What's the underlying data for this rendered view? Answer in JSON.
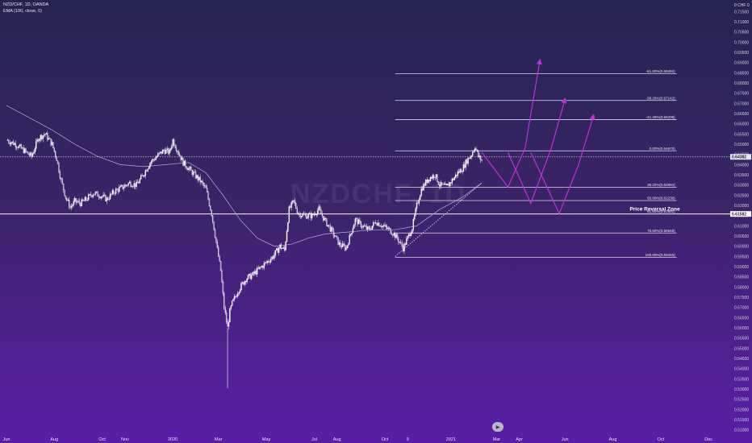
{
  "header": {
    "symbol_line": "NZD/CHF, 1D, OANDA",
    "indicator_line": "EMA (100, close, 0)",
    "currency_label": "0 CHF 0"
  },
  "watermark": "NZDCHF, 1D",
  "colors": {
    "candle": "#ffffff",
    "ema": "#b9a8d8",
    "fib": "#d8d8e8",
    "projection": "#c030d8",
    "current_price_line": "#c9c9d9",
    "reversal_line": "#ffffff"
  },
  "chart_data": {
    "type": "line",
    "title": "",
    "xlabel": "",
    "ylabel": "",
    "ylim": [
      0.5095,
      0.7175
    ],
    "y_ticks": [
      "0.71500",
      "0.71000",
      "0.70500",
      "0.70000",
      "0.69500",
      "0.69000",
      "0.68500",
      "0.68000",
      "0.67500",
      "0.67000",
      "0.66500",
      "0.66000",
      "0.65500",
      "0.65000",
      "0.64500",
      "0.64000",
      "0.63500",
      "0.63000",
      "0.62500",
      "0.62000",
      "0.61500",
      "0.61000",
      "0.60500",
      "0.60000",
      "0.59500",
      "0.59000",
      "0.58500",
      "0.58000",
      "0.57500",
      "0.57000",
      "0.56500",
      "0.56000",
      "0.55500",
      "0.55000",
      "0.54500",
      "0.54000",
      "0.53500",
      "0.53000",
      "0.52500",
      "0.52000",
      "0.51500",
      "0.51000"
    ],
    "x_ticks": [
      {
        "label": "Jun",
        "bar": 0
      },
      {
        "label": "Aug",
        "bar": 42
      },
      {
        "label": "Oct",
        "bar": 84
      },
      {
        "label": "Nov",
        "bar": 104
      },
      {
        "label": "2020",
        "bar": 146
      },
      {
        "label": "Mar",
        "bar": 186
      },
      {
        "label": "May",
        "bar": 228
      },
      {
        "label": "Jul",
        "bar": 270
      },
      {
        "label": "Aug",
        "bar": 290
      },
      {
        "label": "Oct",
        "bar": 332
      },
      {
        "label": "9",
        "bar": 352
      },
      {
        "label": "2021",
        "bar": 390
      },
      {
        "label": "Mar",
        "bar": 430
      },
      {
        "label": "Apr",
        "bar": 450
      },
      {
        "label": "Jun",
        "bar": 490
      },
      {
        "label": "Aug",
        "bar": 532
      },
      {
        "label": "Oct",
        "bar": 574
      },
      {
        "label": "Dec",
        "bar": 616
      }
    ],
    "bars_total": 635,
    "price_path": [
      [
        0,
        0.652
      ],
      [
        8,
        0.65
      ],
      [
        15,
        0.647
      ],
      [
        22,
        0.644
      ],
      [
        28,
        0.653
      ],
      [
        34,
        0.655
      ],
      [
        40,
        0.65
      ],
      [
        44,
        0.643
      ],
      [
        48,
        0.632
      ],
      [
        52,
        0.624
      ],
      [
        56,
        0.619
      ],
      [
        60,
        0.622
      ],
      [
        65,
        0.621
      ],
      [
        70,
        0.623
      ],
      [
        76,
        0.626
      ],
      [
        82,
        0.625
      ],
      [
        88,
        0.623
      ],
      [
        95,
        0.627
      ],
      [
        102,
        0.629
      ],
      [
        108,
        0.631
      ],
      [
        114,
        0.63
      ],
      [
        120,
        0.635
      ],
      [
        126,
        0.641
      ],
      [
        132,
        0.644
      ],
      [
        138,
        0.647
      ],
      [
        143,
        0.646
      ],
      [
        146,
        0.652
      ],
      [
        150,
        0.647
      ],
      [
        155,
        0.641
      ],
      [
        160,
        0.638
      ],
      [
        165,
        0.635
      ],
      [
        170,
        0.632
      ],
      [
        175,
        0.628
      ],
      [
        180,
        0.616
      ],
      [
        184,
        0.602
      ],
      [
        188,
        0.588
      ],
      [
        191,
        0.57
      ],
      [
        194,
        0.56
      ],
      [
        196,
        0.568
      ],
      [
        198,
        0.572
      ],
      [
        204,
        0.579
      ],
      [
        210,
        0.584
      ],
      [
        216,
        0.586
      ],
      [
        222,
        0.589
      ],
      [
        228,
        0.592
      ],
      [
        234,
        0.595
      ],
      [
        240,
        0.6
      ],
      [
        244,
        0.598
      ],
      [
        248,
        0.618
      ],
      [
        252,
        0.622
      ],
      [
        256,
        0.616
      ],
      [
        262,
        0.615
      ],
      [
        268,
        0.615
      ],
      [
        274,
        0.618
      ],
      [
        280,
        0.612
      ],
      [
        286,
        0.607
      ],
      [
        292,
        0.601
      ],
      [
        298,
        0.599
      ],
      [
        302,
        0.606
      ],
      [
        306,
        0.613
      ],
      [
        312,
        0.61
      ],
      [
        318,
        0.608
      ],
      [
        324,
        0.612
      ],
      [
        330,
        0.61
      ],
      [
        336,
        0.608
      ],
      [
        340,
        0.606
      ],
      [
        344,
        0.603
      ],
      [
        348,
        0.599
      ],
      [
        352,
        0.604
      ],
      [
        356,
        0.609
      ],
      [
        360,
        0.62
      ],
      [
        364,
        0.628
      ],
      [
        370,
        0.633
      ],
      [
        376,
        0.635
      ],
      [
        380,
        0.63
      ],
      [
        386,
        0.629
      ],
      [
        392,
        0.633
      ],
      [
        396,
        0.636
      ],
      [
        400,
        0.638
      ],
      [
        404,
        0.642
      ],
      [
        408,
        0.645
      ],
      [
        411,
        0.649
      ],
      [
        414,
        0.644
      ],
      [
        417,
        0.642
      ]
    ],
    "ema_path": [
      [
        0,
        0.669
      ],
      [
        20,
        0.663
      ],
      [
        40,
        0.657
      ],
      [
        60,
        0.65
      ],
      [
        80,
        0.644
      ],
      [
        100,
        0.64
      ],
      [
        120,
        0.639
      ],
      [
        140,
        0.64
      ],
      [
        160,
        0.641
      ],
      [
        175,
        0.636
      ],
      [
        190,
        0.625
      ],
      [
        205,
        0.613
      ],
      [
        220,
        0.604
      ],
      [
        235,
        0.6
      ],
      [
        250,
        0.601
      ],
      [
        265,
        0.604
      ],
      [
        280,
        0.606
      ],
      [
        300,
        0.607
      ],
      [
        320,
        0.608
      ],
      [
        340,
        0.608
      ],
      [
        360,
        0.61
      ],
      [
        380,
        0.618
      ],
      [
        400,
        0.624
      ],
      [
        417,
        0.631
      ]
    ],
    "fib_start_bar": 341,
    "fib_end_bar": 588,
    "fib_levels": [
      {
        "label": "-61.80%(0.68455)",
        "value": 0.68455
      },
      {
        "label": "-38.20%(0.67142)",
        "value": 0.67142
      },
      {
        "label": "-21.40%(0.66208)",
        "value": 0.66208
      },
      {
        "label": "0.00%(0.64675)",
        "value": 0.64675
      },
      {
        "label": "38.20%(0.62894)",
        "value": 0.62894
      },
      {
        "label": "50.00%(0.62238)",
        "value": 0.62238
      },
      {
        "label": "61.80%(0.61582)",
        "value": 0.61582
      },
      {
        "label": "78.60%(0.60648)",
        "value": 0.60648
      },
      {
        "label": "100.00%(0.59455)",
        "value": 0.59455
      }
    ],
    "reversal_zone": {
      "label": "Price Reversal Zone",
      "value": 0.61582,
      "price_tag": "0.61582"
    },
    "current_price": {
      "value": 0.6438,
      "tag": "0.64382"
    },
    "trendline": [
      [
        341,
        0.595
      ],
      [
        417,
        0.631
      ]
    ],
    "projections": [
      [
        [
          417,
          0.646
        ],
        [
          440,
          0.629
        ],
        [
          455,
          0.648
        ],
        [
          468,
          0.691
        ]
      ],
      [
        [
          440,
          0.646
        ],
        [
          460,
          0.621
        ],
        [
          478,
          0.648
        ],
        [
          490,
          0.672
        ]
      ],
      [
        [
          460,
          0.646
        ],
        [
          485,
          0.616
        ],
        [
          502,
          0.64
        ],
        [
          515,
          0.664
        ]
      ]
    ]
  }
}
